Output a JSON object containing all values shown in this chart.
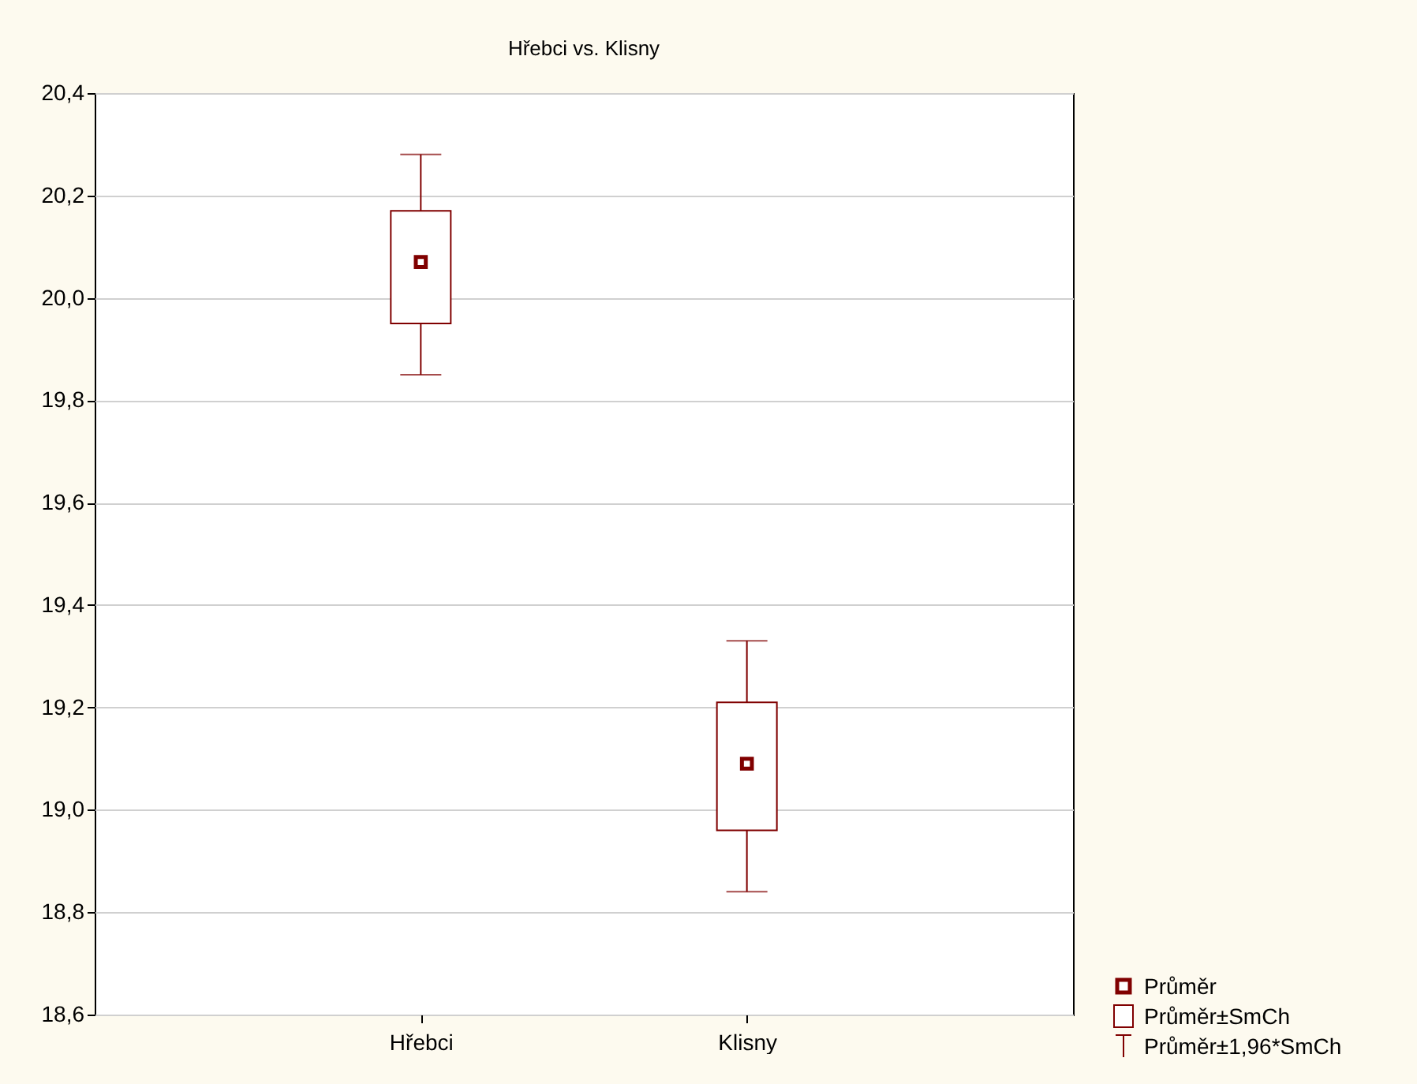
{
  "chart_data": {
    "type": "box",
    "title": "Hřebci  vs. Klisny",
    "categories": [
      "Hřebci",
      "Klisny"
    ],
    "boxes": [
      {
        "low": 19.85,
        "q1": 19.95,
        "median": 20.07,
        "q3": 20.17,
        "high": 20.28
      },
      {
        "low": 18.84,
        "q1": 18.96,
        "median": 19.09,
        "q3": 19.21,
        "high": 19.33
      }
    ],
    "color": "#800000",
    "ylim": [
      18.6,
      20.4
    ],
    "yticks": [
      {
        "value": 18.6,
        "label": "18,6"
      },
      {
        "value": 18.8,
        "label": "18,8"
      },
      {
        "value": 19.0,
        "label": "19,0"
      },
      {
        "value": 19.2,
        "label": "19,2"
      },
      {
        "value": 19.4,
        "label": "19,4"
      },
      {
        "value": 19.6,
        "label": "19,6"
      },
      {
        "value": 19.8,
        "label": "19,8"
      },
      {
        "value": 20.0,
        "label": "20,0"
      },
      {
        "value": 20.2,
        "label": "20,2"
      },
      {
        "value": 20.4,
        "label": "20,4"
      }
    ],
    "grid": "y",
    "annotations": [
      "Průměr",
      "Průměr±SmCh",
      "Průměr±1,96*SmCh"
    ]
  }
}
